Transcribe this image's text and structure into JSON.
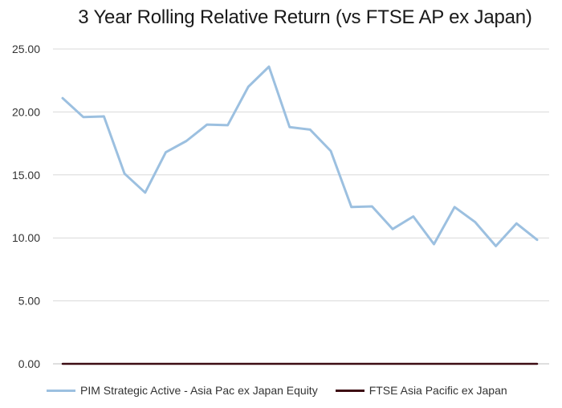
{
  "chart_data": {
    "type": "line",
    "title": "3 Year Rolling Relative Return (vs FTSE AP ex Japan)",
    "xlabel": "",
    "ylabel": "",
    "ylim": [
      0,
      25
    ],
    "y_ticks": [
      "0.00",
      "5.00",
      "10.00",
      "15.00",
      "20.00",
      "25.00"
    ],
    "grid": true,
    "legend_position": "bottom",
    "series": [
      {
        "name": "PIM Strategic Active - Asia Pac ex Japan Equity",
        "color": "#9cc0e0",
        "values": [
          21.1,
          19.6,
          19.65,
          15.1,
          13.6,
          16.8,
          17.7,
          19.0,
          18.95,
          22.0,
          23.6,
          18.8,
          18.6,
          16.9,
          12.45,
          12.5,
          10.7,
          11.7,
          9.5,
          12.45,
          11.25,
          9.35,
          11.15,
          9.85
        ]
      },
      {
        "name": "FTSE Asia Pacific ex Japan",
        "color": "#3d0c13",
        "values": [
          0,
          0,
          0,
          0,
          0,
          0,
          0,
          0,
          0,
          0,
          0,
          0,
          0,
          0,
          0,
          0,
          0,
          0,
          0,
          0,
          0,
          0,
          0,
          0
        ]
      }
    ]
  }
}
